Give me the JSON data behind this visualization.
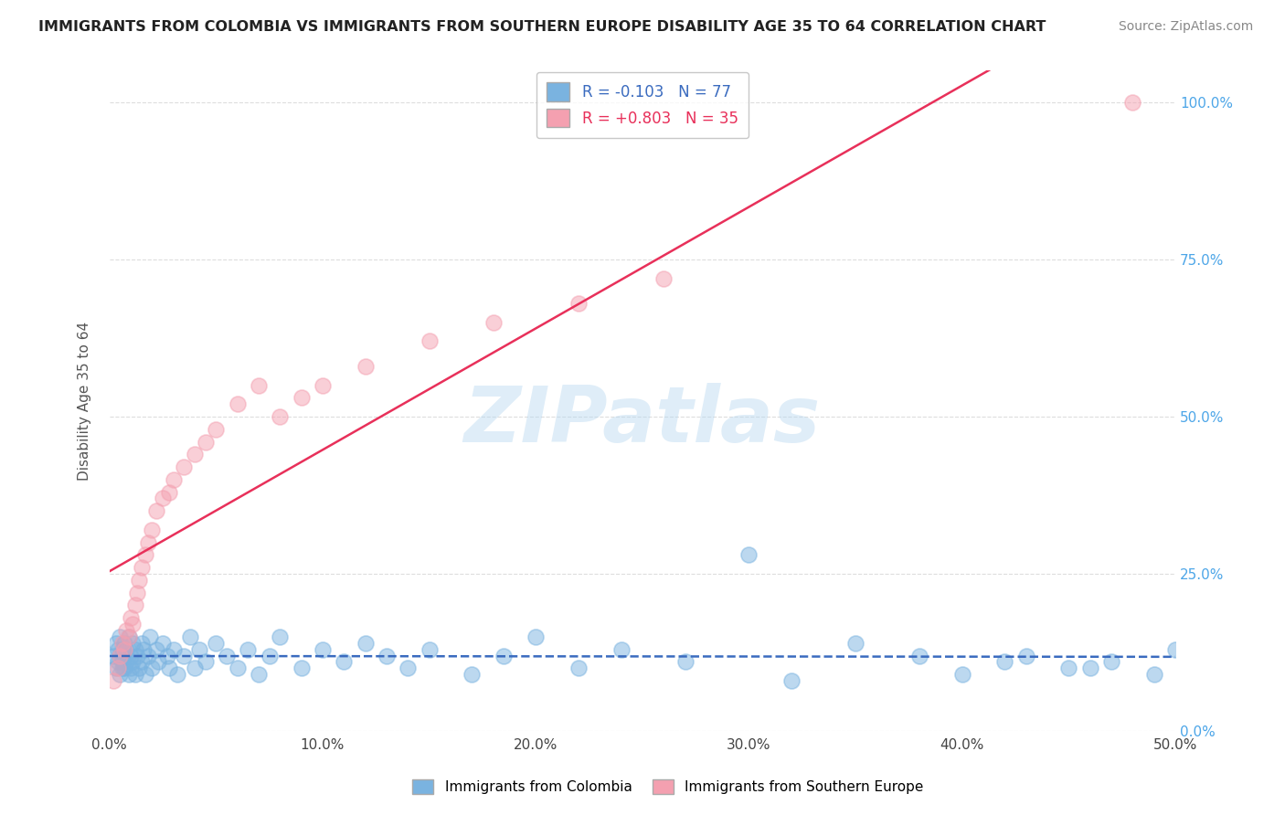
{
  "title": "IMMIGRANTS FROM COLOMBIA VS IMMIGRANTS FROM SOUTHERN EUROPE DISABILITY AGE 35 TO 64 CORRELATION CHART",
  "source": "Source: ZipAtlas.com",
  "ylabel": "Disability Age 35 to 64",
  "legend_labels": [
    "Immigrants from Colombia",
    "Immigrants from Southern Europe"
  ],
  "r_colombia": -0.103,
  "n_colombia": 77,
  "r_southern": 0.803,
  "n_southern": 35,
  "color_colombia": "#7ab3e0",
  "color_southern": "#f4a0b0",
  "line_color_colombia": "#3a6bbf",
  "line_color_southern": "#e8305a",
  "watermark": "ZIPatlas",
  "xlim": [
    0.0,
    0.5
  ],
  "ylim": [
    0.0,
    1.05
  ],
  "colombia_x": [
    0.002,
    0.003,
    0.003,
    0.004,
    0.004,
    0.005,
    0.005,
    0.005,
    0.006,
    0.006,
    0.006,
    0.007,
    0.007,
    0.007,
    0.008,
    0.008,
    0.009,
    0.009,
    0.01,
    0.01,
    0.011,
    0.011,
    0.012,
    0.012,
    0.013,
    0.014,
    0.015,
    0.015,
    0.016,
    0.017,
    0.018,
    0.019,
    0.02,
    0.022,
    0.023,
    0.025,
    0.027,
    0.028,
    0.03,
    0.032,
    0.035,
    0.038,
    0.04,
    0.042,
    0.045,
    0.05,
    0.055,
    0.06,
    0.065,
    0.07,
    0.075,
    0.08,
    0.09,
    0.1,
    0.11,
    0.12,
    0.13,
    0.14,
    0.15,
    0.17,
    0.185,
    0.2,
    0.22,
    0.24,
    0.27,
    0.3,
    0.32,
    0.35,
    0.38,
    0.4,
    0.42,
    0.45,
    0.47,
    0.49,
    0.5,
    0.43,
    0.46
  ],
  "colombia_y": [
    0.12,
    0.1,
    0.14,
    0.11,
    0.13,
    0.09,
    0.12,
    0.15,
    0.1,
    0.13,
    0.11,
    0.14,
    0.12,
    0.1,
    0.13,
    0.11,
    0.09,
    0.15,
    0.12,
    0.1,
    0.14,
    0.11,
    0.13,
    0.09,
    0.12,
    0.1,
    0.14,
    0.11,
    0.13,
    0.09,
    0.12,
    0.15,
    0.1,
    0.13,
    0.11,
    0.14,
    0.12,
    0.1,
    0.13,
    0.09,
    0.12,
    0.15,
    0.1,
    0.13,
    0.11,
    0.14,
    0.12,
    0.1,
    0.13,
    0.09,
    0.12,
    0.15,
    0.1,
    0.13,
    0.11,
    0.14,
    0.12,
    0.1,
    0.13,
    0.09,
    0.12,
    0.15,
    0.1,
    0.13,
    0.11,
    0.28,
    0.08,
    0.14,
    0.12,
    0.09,
    0.11,
    0.1,
    0.11,
    0.09,
    0.13,
    0.12,
    0.1
  ],
  "southern_x": [
    0.002,
    0.004,
    0.005,
    0.006,
    0.007,
    0.008,
    0.009,
    0.01,
    0.011,
    0.012,
    0.013,
    0.014,
    0.015,
    0.017,
    0.018,
    0.02,
    0.022,
    0.025,
    0.028,
    0.03,
    0.035,
    0.04,
    0.045,
    0.05,
    0.06,
    0.07,
    0.08,
    0.09,
    0.1,
    0.12,
    0.15,
    0.18,
    0.22,
    0.26,
    0.48
  ],
  "southern_y": [
    0.08,
    0.1,
    0.12,
    0.14,
    0.13,
    0.16,
    0.15,
    0.18,
    0.17,
    0.2,
    0.22,
    0.24,
    0.26,
    0.28,
    0.3,
    0.32,
    0.35,
    0.37,
    0.38,
    0.4,
    0.42,
    0.44,
    0.46,
    0.48,
    0.52,
    0.55,
    0.5,
    0.53,
    0.55,
    0.58,
    0.62,
    0.65,
    0.68,
    0.72,
    1.0
  ]
}
